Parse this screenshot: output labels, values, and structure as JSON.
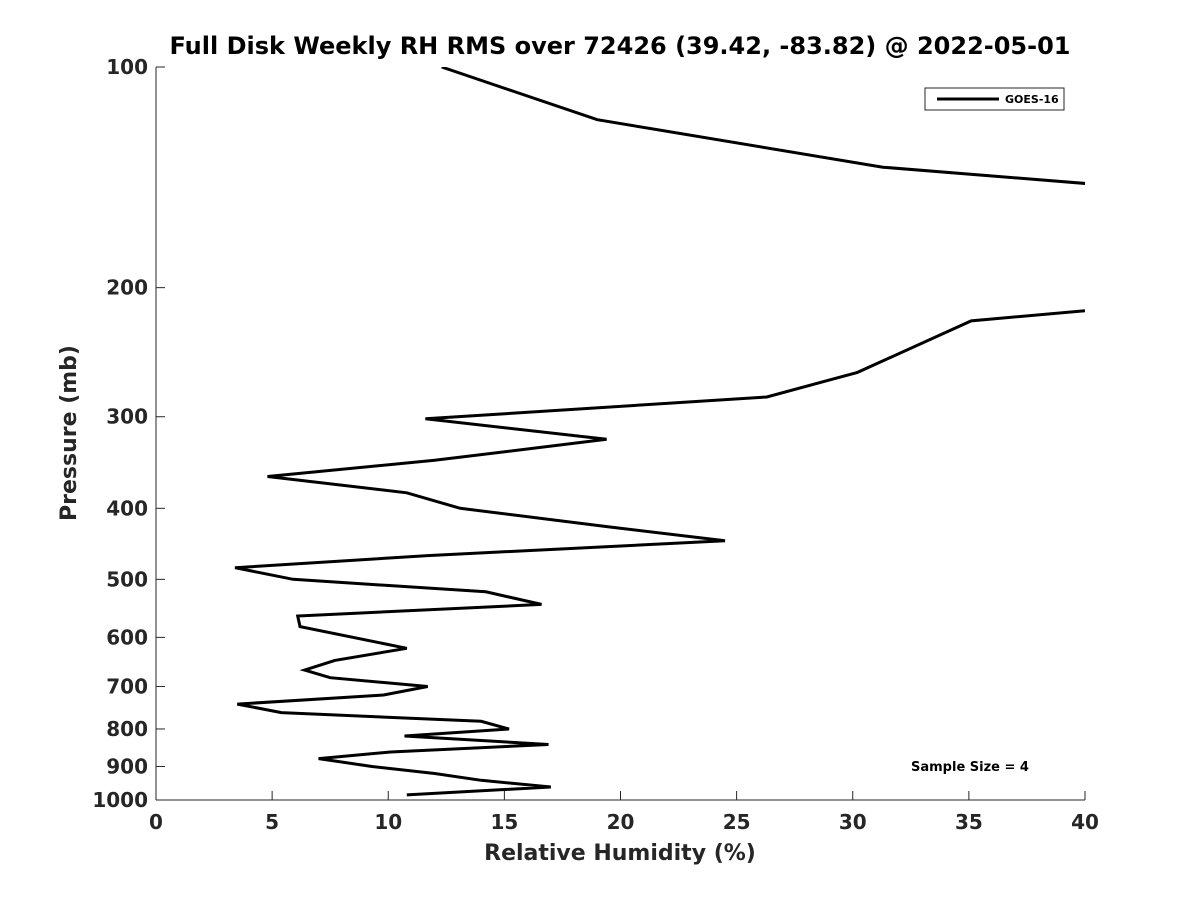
{
  "chart_data": {
    "type": "line",
    "title": "Full Disk Weekly RH RMS over 72426 (39.42, -83.82) @ 2022-05-01",
    "xlabel": "Relative Humidity (%)",
    "ylabel": "Pressure (mb)",
    "xlim": [
      0,
      40
    ],
    "ylim": [
      100,
      1000
    ],
    "y_scale": "log",
    "y_reversed": true,
    "x_ticks": [
      "0",
      "5",
      "10",
      "15",
      "20",
      "25",
      "30",
      "35",
      "40"
    ],
    "y_ticks": [
      "100",
      "200",
      "300",
      "400",
      "500",
      "600",
      "700",
      "800",
      "900",
      "1000"
    ],
    "grid": false,
    "legend_position": "top-right",
    "annotation": "Sample Size = 4",
    "series": [
      {
        "name": "GOES-16",
        "color": "#000000",
        "segments": [
          [
            {
              "x": 12.3,
              "y": 100
            },
            {
              "x": 19.0,
              "y": 118
            },
            {
              "x": 31.3,
              "y": 137
            },
            {
              "x": 41.0,
              "y": 145
            }
          ],
          [
            {
              "x": 40.0,
              "y": 215
            },
            {
              "x": 35.1,
              "y": 222
            },
            {
              "x": 30.2,
              "y": 261
            },
            {
              "x": 26.3,
              "y": 282
            },
            {
              "x": 11.6,
              "y": 302
            },
            {
              "x": 19.4,
              "y": 322
            },
            {
              "x": 12.0,
              "y": 344
            },
            {
              "x": 4.8,
              "y": 362
            },
            {
              "x": 10.8,
              "y": 381
            },
            {
              "x": 13.1,
              "y": 400
            },
            {
              "x": 19.5,
              "y": 424
            },
            {
              "x": 24.5,
              "y": 443
            },
            {
              "x": 11.7,
              "y": 464
            },
            {
              "x": 3.4,
              "y": 482
            },
            {
              "x": 5.9,
              "y": 500
            },
            {
              "x": 14.2,
              "y": 520
            },
            {
              "x": 16.6,
              "y": 541
            },
            {
              "x": 6.1,
              "y": 561
            },
            {
              "x": 6.2,
              "y": 580
            },
            {
              "x": 10.8,
              "y": 621
            },
            {
              "x": 7.7,
              "y": 645
            },
            {
              "x": 6.4,
              "y": 665
            },
            {
              "x": 7.5,
              "y": 681
            },
            {
              "x": 11.7,
              "y": 700
            },
            {
              "x": 9.8,
              "y": 719
            },
            {
              "x": 3.5,
              "y": 740
            },
            {
              "x": 5.4,
              "y": 760
            },
            {
              "x": 14.0,
              "y": 781
            },
            {
              "x": 15.2,
              "y": 800
            },
            {
              "x": 10.7,
              "y": 818
            },
            {
              "x": 16.9,
              "y": 840
            },
            {
              "x": 10.1,
              "y": 860
            },
            {
              "x": 7.0,
              "y": 878
            },
            {
              "x": 9.3,
              "y": 900
            },
            {
              "x": 12.0,
              "y": 920
            },
            {
              "x": 14.0,
              "y": 940
            },
            {
              "x": 17.0,
              "y": 960
            },
            {
              "x": 10.8,
              "y": 984
            }
          ]
        ]
      }
    ]
  }
}
